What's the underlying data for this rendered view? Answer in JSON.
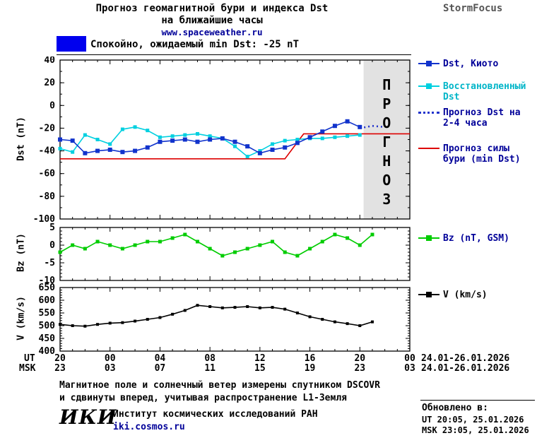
{
  "header": {
    "title_line1": "Прогноз геомагнитной бури и индекса Dst",
    "title_line2": "на ближайшие часы",
    "site_url": "www.spaceweather.ru",
    "brand": "StormFocus"
  },
  "status_banner": {
    "text": "Спокойно, ожидаемый min Dst: -25 nT",
    "swatch_color": "#0000ee"
  },
  "forecast_watermark": "ПРОГНОЗ",
  "chart_data": {
    "type": "line",
    "x": {
      "lim": [
        0,
        28
      ],
      "major_hours": [
        0,
        4,
        8,
        12,
        16,
        20,
        24,
        28
      ],
      "ut_prefix": "UT",
      "msk_prefix": "MSK",
      "ut_labels": [
        "20",
        "00",
        "04",
        "08",
        "12",
        "16",
        "20",
        "00"
      ],
      "msk_labels": [
        "23",
        "03",
        "07",
        "11",
        "15",
        "19",
        "23",
        "03"
      ],
      "ut_date": "24.01-26.01.2026",
      "msk_date": "24.01-26.01.2026"
    },
    "panels": [
      {
        "name": "dst",
        "ylabel": "Dst (nT)",
        "ylim": [
          -100,
          40
        ],
        "yticks": [
          40,
          20,
          0,
          -20,
          -40,
          -60,
          -80,
          -100
        ],
        "yminor": 10,
        "forecast_region": {
          "start": 24.3,
          "end": 28,
          "color": "#e2e2e2",
          "label_color": "#c6c6c6"
        },
        "series": [
          {
            "name": "Прогноз силы бури (min Dst)",
            "color": "#dd0000",
            "style": "solid",
            "marker": false,
            "x": [
              0,
              18,
              19.5,
              28
            ],
            "y": [
              -47,
              -47,
              -25,
              -25
            ]
          },
          {
            "name": "Восстановленный Dst",
            "color": "#00d0e0",
            "style": "solid",
            "marker": true,
            "marker_size": 5,
            "x": [
              0,
              1,
              2,
              3,
              4,
              5,
              6,
              7,
              8,
              9,
              10,
              11,
              12,
              13,
              14,
              15,
              16,
              17,
              18,
              19,
              20,
              21,
              22,
              23,
              24
            ],
            "y": [
              -38,
              -41,
              -26,
              -30,
              -34,
              -21,
              -19,
              -22,
              -28,
              -27,
              -26,
              -25,
              -27,
              -29,
              -36,
              -45,
              -40,
              -34,
              -31,
              -30,
              -29,
              -29,
              -28,
              -27,
              -26
            ]
          },
          {
            "name": "Dst, Киото",
            "color": "#1133cc",
            "style": "solid",
            "marker": true,
            "marker_size": 6,
            "x": [
              0,
              1,
              2,
              3,
              4,
              5,
              6,
              7,
              8,
              9,
              10,
              11,
              12,
              13,
              14,
              15,
              16,
              17,
              18,
              19,
              20,
              21,
              22,
              23,
              24
            ],
            "y": [
              -30,
              -31,
              -42,
              -40,
              -39,
              -41,
              -40,
              -37,
              -32,
              -31,
              -30,
              -32,
              -30,
              -29,
              -32,
              -36,
              -42,
              -39,
              -37,
              -33,
              -28,
              -23,
              -18,
              -14,
              -19
            ]
          },
          {
            "name": "Прогноз Dst на 2-4 часа",
            "color": "#2233cc",
            "style": "dotted",
            "marker": false,
            "x": [
              24,
              25,
              26
            ],
            "y": [
              -20,
              -18,
              -19
            ]
          }
        ]
      },
      {
        "name": "bz",
        "ylabel": "Bz (nT)",
        "ylim": [
          -10,
          5
        ],
        "yticks": [
          5,
          0,
          -5,
          -10
        ],
        "yminor": 1,
        "series": [
          {
            "name": "Bz (nT, GSM)",
            "color": "#00cc00",
            "style": "solid",
            "marker": true,
            "marker_size": 5,
            "x": [
              0,
              1,
              2,
              3,
              4,
              5,
              6,
              7,
              8,
              9,
              10,
              11,
              12,
              13,
              14,
              15,
              16,
              17,
              18,
              19,
              20,
              21,
              22,
              23,
              24,
              25
            ],
            "y": [
              -2,
              0,
              -1,
              1,
              0,
              -1,
              0,
              1,
              1,
              2,
              3,
              1,
              -1,
              -3,
              -2,
              -1,
              0,
              1,
              -2,
              -3,
              -1,
              1,
              3,
              2,
              0,
              3
            ]
          }
        ]
      },
      {
        "name": "v",
        "ylabel": "V (km/s)",
        "ylim": [
          400,
          650
        ],
        "yticks": [
          650,
          600,
          550,
          500,
          450,
          400
        ],
        "yminor": 10,
        "series": [
          {
            "name": "V (km/s)",
            "color": "#000000",
            "style": "solid",
            "marker": true,
            "marker_size": 4,
            "x": [
              0,
              1,
              2,
              3,
              4,
              5,
              6,
              7,
              8,
              9,
              10,
              11,
              12,
              13,
              14,
              15,
              16,
              17,
              18,
              19,
              20,
              21,
              22,
              23,
              24,
              25
            ],
            "y": [
              505,
              500,
              498,
              505,
              510,
              512,
              518,
              525,
              532,
              545,
              560,
              580,
              575,
              570,
              572,
              575,
              570,
              572,
              565,
              550,
              535,
              525,
              515,
              508,
              500,
              515
            ]
          }
        ]
      }
    ]
  },
  "footer": {
    "note_line1": "Магнитное поле и солнечный ветер измерены спутником DSCOVR",
    "note_line2": "и сдвинуты вперед, учитывая распространение L1-Земля",
    "logo": "ИКИ",
    "institute": "Институт космических исследований РАН",
    "institute_url": "iki.cosmos.ru",
    "updated_label": "Обновлено в:",
    "updated_ut": "UT  20:05, 25.01.2026",
    "updated_msk": "MSK 23:05, 25.01.2026"
  }
}
